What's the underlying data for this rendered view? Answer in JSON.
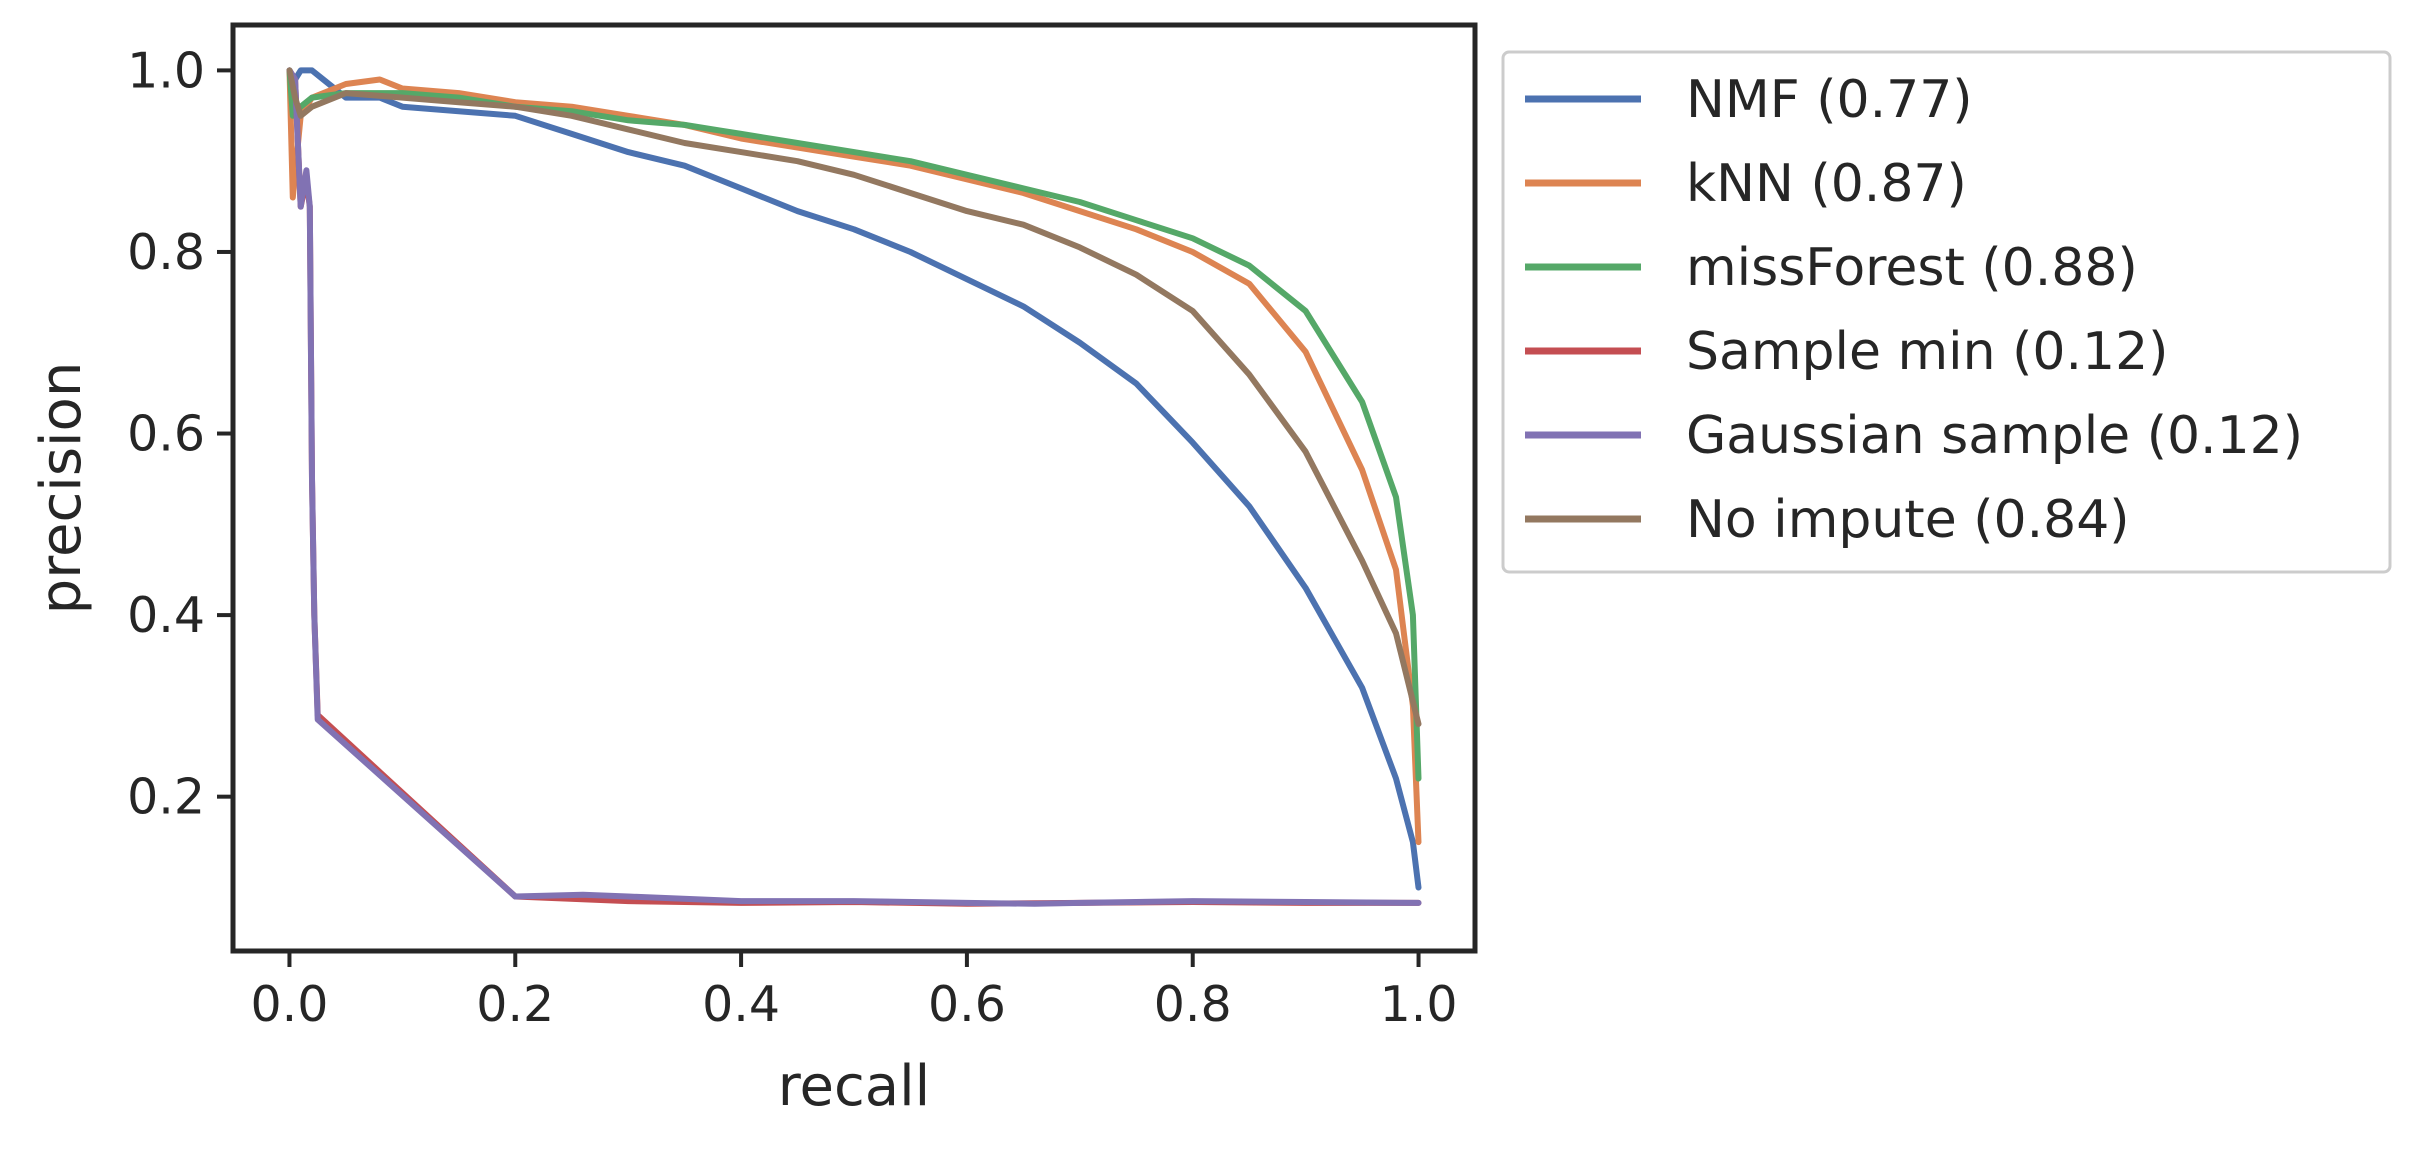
{
  "chart_data": {
    "type": "line",
    "title": "",
    "xlabel": "recall",
    "ylabel": "precision",
    "xlim": [
      -0.05,
      1.05
    ],
    "ylim": [
      0.03,
      1.05
    ],
    "xticks": [
      "0.0",
      "0.2",
      "0.4",
      "0.6",
      "0.8",
      "1.0"
    ],
    "yticks": [
      "0.2",
      "0.4",
      "0.6",
      "0.8",
      "1.0"
    ],
    "grid": false,
    "legend_position": "outside-right-top",
    "series": [
      {
        "name": "NMF (0.77)",
        "color": "#4c72b0",
        "points": [
          [
            0.0,
            1.0
          ],
          [
            0.005,
            0.99
          ],
          [
            0.01,
            1.0
          ],
          [
            0.02,
            1.0
          ],
          [
            0.03,
            0.99
          ],
          [
            0.05,
            0.97
          ],
          [
            0.08,
            0.97
          ],
          [
            0.1,
            0.96
          ],
          [
            0.15,
            0.955
          ],
          [
            0.2,
            0.95
          ],
          [
            0.25,
            0.93
          ],
          [
            0.3,
            0.91
          ],
          [
            0.35,
            0.895
          ],
          [
            0.4,
            0.87
          ],
          [
            0.45,
            0.845
          ],
          [
            0.5,
            0.825
          ],
          [
            0.55,
            0.8
          ],
          [
            0.6,
            0.77
          ],
          [
            0.65,
            0.74
          ],
          [
            0.7,
            0.7
          ],
          [
            0.75,
            0.655
          ],
          [
            0.8,
            0.59
          ],
          [
            0.85,
            0.52
          ],
          [
            0.9,
            0.43
          ],
          [
            0.95,
            0.32
          ],
          [
            0.98,
            0.22
          ],
          [
            0.995,
            0.15
          ],
          [
            1.0,
            0.1
          ]
        ]
      },
      {
        "name": "kNN (0.87)",
        "color": "#dd8452",
        "points": [
          [
            0.0,
            1.0
          ],
          [
            0.003,
            0.86
          ],
          [
            0.01,
            0.95
          ],
          [
            0.02,
            0.97
          ],
          [
            0.05,
            0.985
          ],
          [
            0.08,
            0.99
          ],
          [
            0.1,
            0.98
          ],
          [
            0.15,
            0.975
          ],
          [
            0.2,
            0.965
          ],
          [
            0.25,
            0.96
          ],
          [
            0.3,
            0.95
          ],
          [
            0.35,
            0.94
          ],
          [
            0.4,
            0.925
          ],
          [
            0.45,
            0.915
          ],
          [
            0.5,
            0.905
          ],
          [
            0.55,
            0.895
          ],
          [
            0.6,
            0.88
          ],
          [
            0.65,
            0.865
          ],
          [
            0.7,
            0.845
          ],
          [
            0.75,
            0.825
          ],
          [
            0.8,
            0.8
          ],
          [
            0.85,
            0.765
          ],
          [
            0.9,
            0.69
          ],
          [
            0.95,
            0.56
          ],
          [
            0.98,
            0.45
          ],
          [
            0.995,
            0.3
          ],
          [
            1.0,
            0.15
          ]
        ]
      },
      {
        "name": "missForest (0.88)",
        "color": "#55a868",
        "points": [
          [
            0.0,
            1.0
          ],
          [
            0.003,
            0.95
          ],
          [
            0.01,
            0.96
          ],
          [
            0.02,
            0.97
          ],
          [
            0.05,
            0.975
          ],
          [
            0.1,
            0.975
          ],
          [
            0.15,
            0.97
          ],
          [
            0.2,
            0.96
          ],
          [
            0.25,
            0.955
          ],
          [
            0.3,
            0.945
          ],
          [
            0.35,
            0.94
          ],
          [
            0.4,
            0.93
          ],
          [
            0.45,
            0.92
          ],
          [
            0.5,
            0.91
          ],
          [
            0.55,
            0.9
          ],
          [
            0.6,
            0.885
          ],
          [
            0.65,
            0.87
          ],
          [
            0.7,
            0.855
          ],
          [
            0.75,
            0.835
          ],
          [
            0.8,
            0.815
          ],
          [
            0.85,
            0.785
          ],
          [
            0.9,
            0.735
          ],
          [
            0.95,
            0.635
          ],
          [
            0.98,
            0.53
          ],
          [
            0.995,
            0.4
          ],
          [
            1.0,
            0.22
          ]
        ]
      },
      {
        "name": "Sample min (0.12)",
        "color": "#c44e52",
        "points": [
          [
            0.0,
            1.0
          ],
          [
            0.005,
            0.99
          ],
          [
            0.01,
            0.85
          ],
          [
            0.015,
            0.88
          ],
          [
            0.018,
            0.85
          ],
          [
            0.02,
            0.55
          ],
          [
            0.022,
            0.4
          ],
          [
            0.025,
            0.29
          ],
          [
            0.2,
            0.09
          ],
          [
            0.3,
            0.085
          ],
          [
            0.4,
            0.083
          ],
          [
            0.5,
            0.084
          ],
          [
            0.6,
            0.082
          ],
          [
            0.7,
            0.083
          ],
          [
            0.8,
            0.084
          ],
          [
            0.9,
            0.083
          ],
          [
            1.0,
            0.083
          ]
        ]
      },
      {
        "name": "Gaussian sample (0.12)",
        "color": "#8172b3",
        "points": [
          [
            0.0,
            1.0
          ],
          [
            0.005,
            0.99
          ],
          [
            0.01,
            0.85
          ],
          [
            0.015,
            0.89
          ],
          [
            0.018,
            0.85
          ],
          [
            0.02,
            0.55
          ],
          [
            0.022,
            0.4
          ],
          [
            0.025,
            0.285
          ],
          [
            0.2,
            0.09
          ],
          [
            0.26,
            0.092
          ],
          [
            0.3,
            0.09
          ],
          [
            0.4,
            0.085
          ],
          [
            0.5,
            0.085
          ],
          [
            0.6,
            0.083
          ],
          [
            0.66,
            0.082
          ],
          [
            0.7,
            0.083
          ],
          [
            0.8,
            0.085
          ],
          [
            0.9,
            0.084
          ],
          [
            1.0,
            0.083
          ]
        ]
      },
      {
        "name": "No impute (0.84)",
        "color": "#937860",
        "points": [
          [
            0.0,
            1.0
          ],
          [
            0.005,
            0.97
          ],
          [
            0.01,
            0.95
          ],
          [
            0.02,
            0.96
          ],
          [
            0.05,
            0.975
          ],
          [
            0.1,
            0.97
          ],
          [
            0.15,
            0.965
          ],
          [
            0.2,
            0.96
          ],
          [
            0.25,
            0.95
          ],
          [
            0.3,
            0.935
          ],
          [
            0.35,
            0.92
          ],
          [
            0.4,
            0.91
          ],
          [
            0.45,
            0.9
          ],
          [
            0.5,
            0.885
          ],
          [
            0.55,
            0.865
          ],
          [
            0.6,
            0.845
          ],
          [
            0.65,
            0.83
          ],
          [
            0.7,
            0.805
          ],
          [
            0.75,
            0.775
          ],
          [
            0.8,
            0.735
          ],
          [
            0.85,
            0.665
          ],
          [
            0.9,
            0.58
          ],
          [
            0.95,
            0.46
          ],
          [
            0.98,
            0.38
          ],
          [
            1.0,
            0.28
          ]
        ]
      }
    ]
  }
}
